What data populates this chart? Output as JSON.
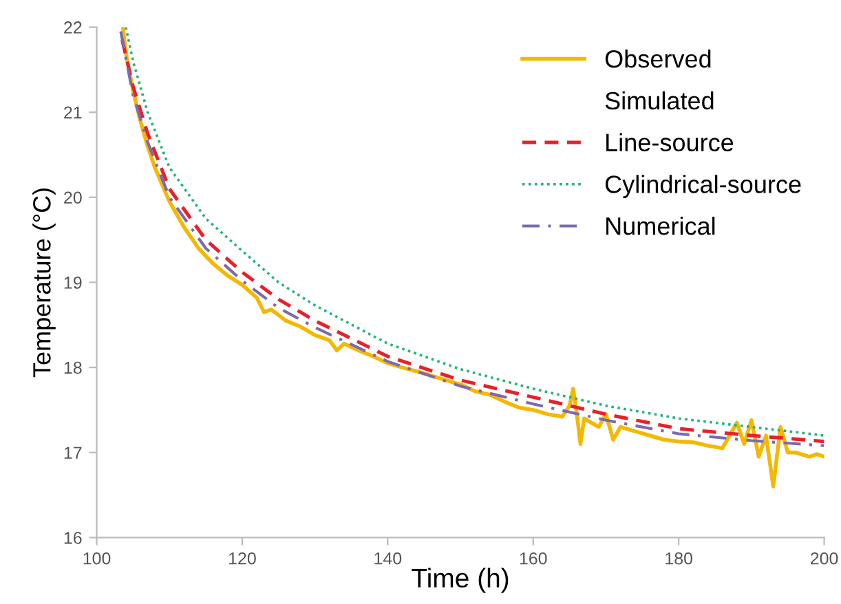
{
  "chart_data": {
    "type": "line",
    "xlabel": "Time (h)",
    "ylabel": "Temperature (°C)",
    "xlim": [
      100,
      200
    ],
    "ylim": [
      16,
      22
    ],
    "xticks": [
      100,
      120,
      140,
      160,
      180,
      200
    ],
    "yticks": [
      16,
      17,
      18,
      19,
      20,
      21,
      22
    ],
    "grid": false,
    "legend": "top right",
    "annotations": [
      "Simulated"
    ],
    "series": [
      {
        "name": "Observed",
        "color": "#f5b800",
        "line_style": "solid",
        "x": [
          103.6,
          104,
          105,
          106,
          107,
          108,
          110,
          112,
          114,
          116,
          118,
          120,
          122,
          123,
          124,
          126,
          128,
          130,
          132,
          133,
          134,
          136,
          138,
          140,
          142,
          145,
          148,
          150,
          152,
          154,
          156,
          158,
          160,
          162,
          164,
          165,
          165.5,
          166,
          166.5,
          167,
          168,
          169,
          170,
          171,
          172,
          174,
          176,
          178,
          180,
          182,
          184,
          186,
          187,
          188,
          189,
          190,
          191,
          192,
          193,
          193.5,
          194,
          195,
          196,
          198,
          199,
          200
        ],
        "values": [
          22.0,
          21.7,
          21.25,
          20.9,
          20.6,
          20.35,
          19.95,
          19.65,
          19.4,
          19.22,
          19.08,
          18.97,
          18.82,
          18.65,
          18.68,
          18.55,
          18.48,
          18.38,
          18.32,
          18.2,
          18.28,
          18.2,
          18.13,
          18.05,
          18.0,
          17.93,
          17.85,
          17.8,
          17.72,
          17.68,
          17.6,
          17.53,
          17.5,
          17.45,
          17.42,
          17.55,
          17.75,
          17.45,
          17.1,
          17.4,
          17.35,
          17.3,
          17.45,
          17.15,
          17.3,
          17.25,
          17.2,
          17.15,
          17.13,
          17.12,
          17.08,
          17.05,
          17.2,
          17.35,
          17.1,
          17.38,
          16.95,
          17.2,
          16.6,
          16.95,
          17.3,
          17.0,
          17.0,
          16.95,
          16.98,
          16.95
        ]
      },
      {
        "name": "Line-source",
        "color": "#e8202a",
        "line_style": "dashed",
        "x": [
          103.5,
          105,
          107,
          110,
          115,
          120,
          125,
          130,
          140,
          150,
          160,
          170,
          180,
          190,
          200
        ],
        "values": [
          21.85,
          21.3,
          20.75,
          20.1,
          19.5,
          19.12,
          18.8,
          18.55,
          18.13,
          17.85,
          17.65,
          17.45,
          17.28,
          17.2,
          17.13
        ]
      },
      {
        "name": "Cylindrical-source",
        "color": "#22b573",
        "line_style": "dotted",
        "x": [
          104,
          105,
          107,
          110,
          115,
          120,
          125,
          130,
          140,
          150,
          160,
          170,
          180,
          190,
          200
        ],
        "values": [
          22.0,
          21.6,
          21.0,
          20.35,
          19.75,
          19.37,
          19.0,
          18.73,
          18.28,
          17.98,
          17.75,
          17.55,
          17.4,
          17.3,
          17.2
        ]
      },
      {
        "name": "Numerical",
        "color": "#7a6ab0",
        "line_style": "dashdot",
        "x": [
          103.3,
          105,
          107,
          110,
          115,
          120,
          125,
          130,
          140,
          150,
          160,
          170,
          180,
          190,
          200
        ],
        "values": [
          21.95,
          21.2,
          20.65,
          20.0,
          19.4,
          19.02,
          18.7,
          18.47,
          18.07,
          17.78,
          17.57,
          17.38,
          17.22,
          17.14,
          17.08
        ]
      }
    ]
  }
}
